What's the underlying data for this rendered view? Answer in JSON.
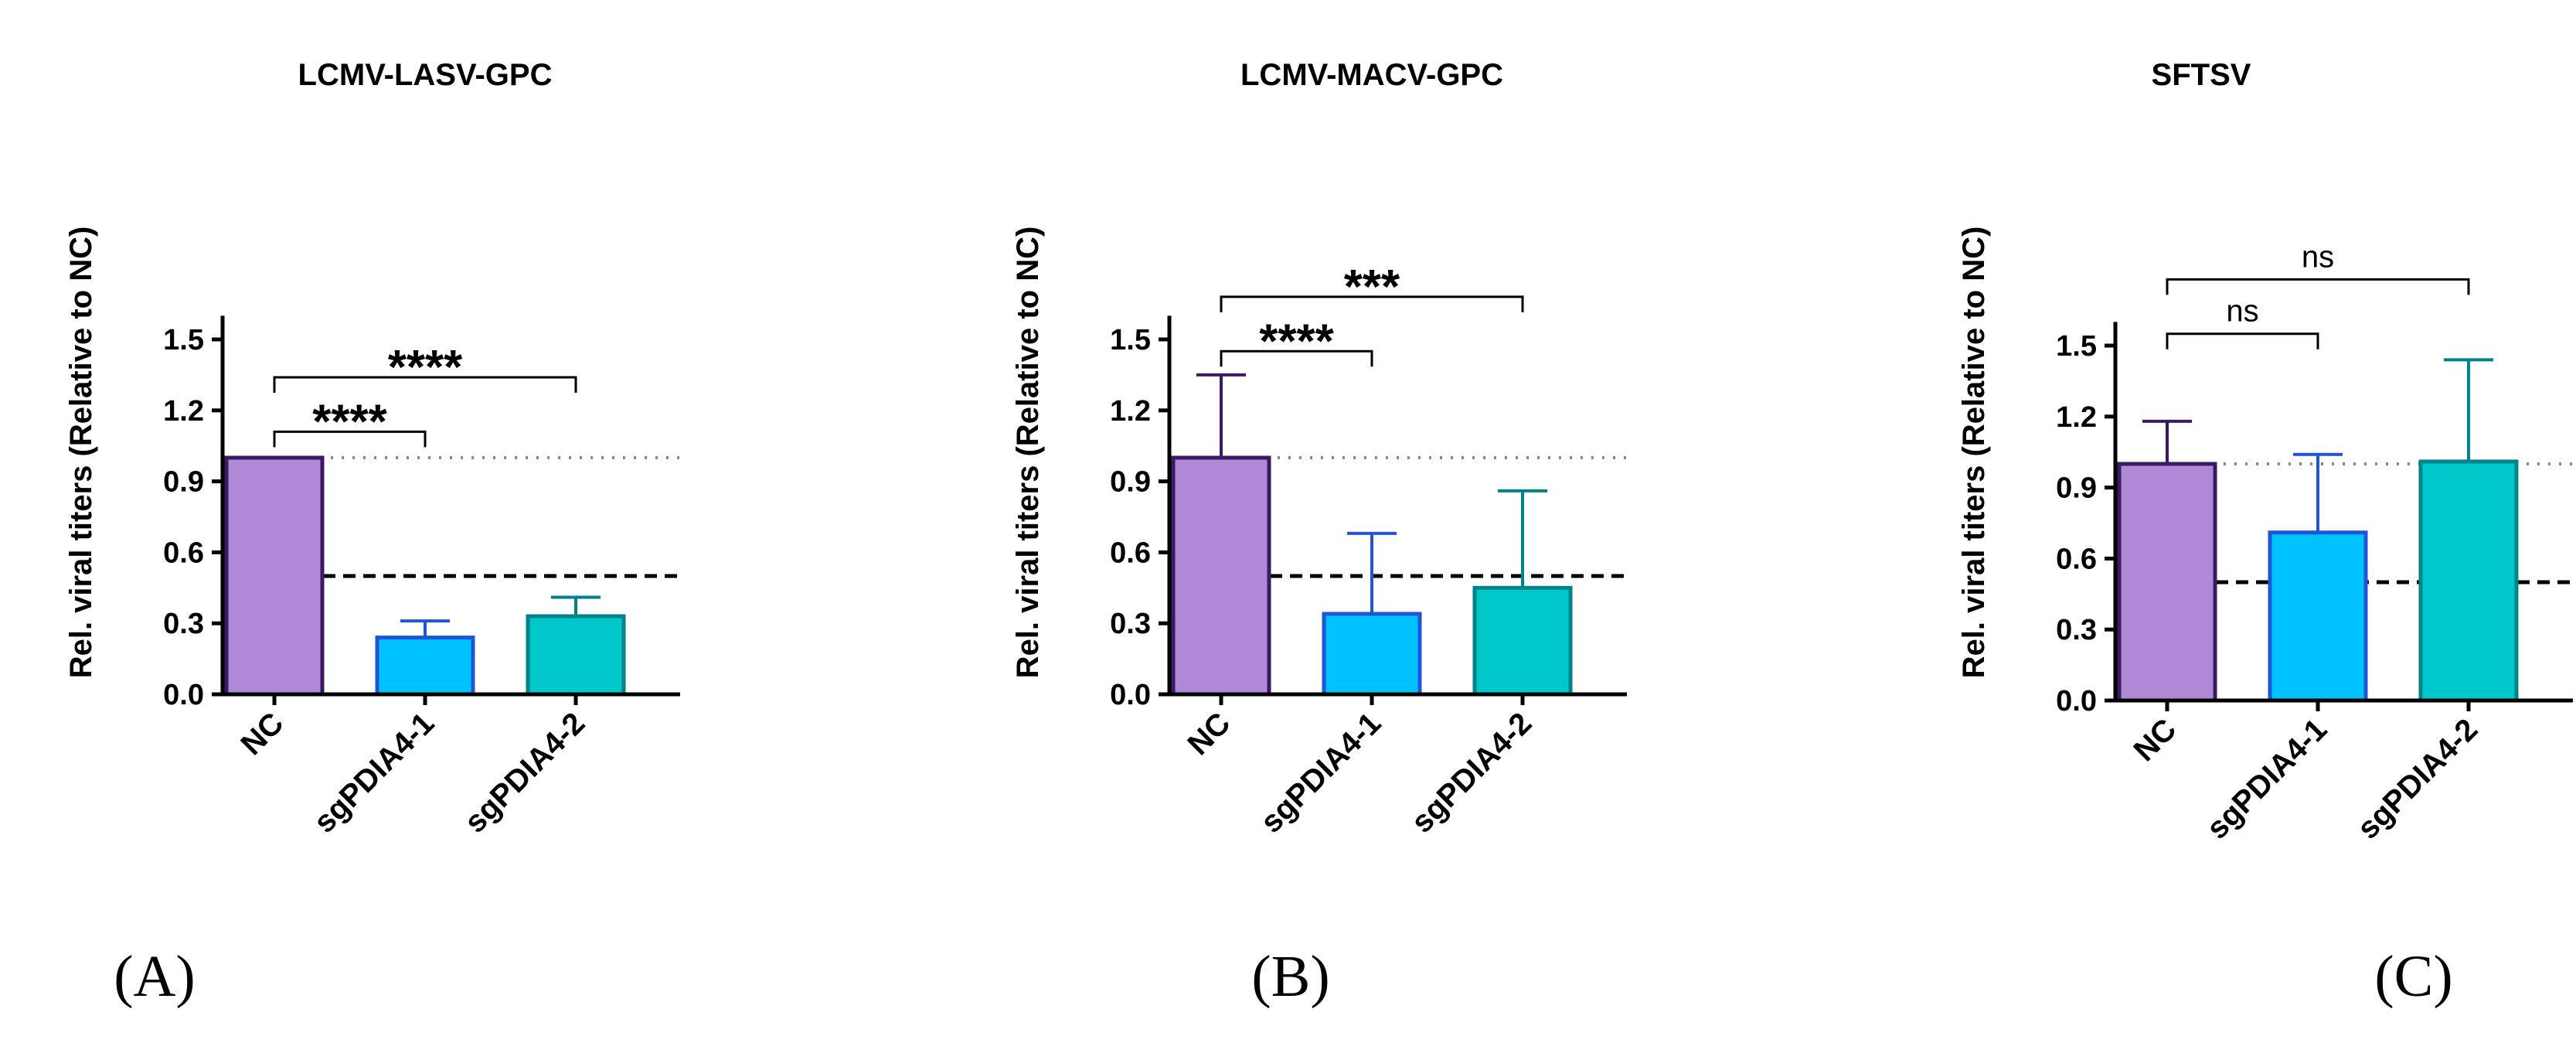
{
  "chart_data": [
    {
      "type": "bar",
      "panel_label": "(A)",
      "title": "LCMV-LASV-GPC",
      "ylabel": "Rel. viral titers (Relative to NC)",
      "xlabel": "",
      "ylim": [
        0,
        1.6
      ],
      "yticks": [
        "0.0",
        "0.3",
        "0.6",
        "0.9",
        "1.2",
        "1.5"
      ],
      "categories": [
        "NC",
        "sgPDIA4-1",
        "sgPDIA4-2"
      ],
      "values": [
        1.0,
        0.24,
        0.33
      ],
      "error_upper": [
        1.0,
        0.31,
        0.41
      ],
      "bar_fill": [
        "#ad89d6",
        "#00c2ff",
        "#00c7c9"
      ],
      "bar_edge": [
        "#3a1b62",
        "#1f55d6",
        "#00828a"
      ],
      "reference_lines": [
        {
          "value": 1.0,
          "style": "dotted"
        },
        {
          "value": 0.5,
          "style": "dashed"
        }
      ],
      "significance": [
        {
          "from": 0,
          "to": 1,
          "label": "****",
          "level": 1.11
        },
        {
          "from": 0,
          "to": 2,
          "label": "****",
          "level": 1.34
        }
      ]
    },
    {
      "type": "bar",
      "panel_label": "(B)",
      "title": "LCMV-MACV-GPC",
      "ylabel": "Rel. viral titers (Relative to NC)",
      "xlabel": "",
      "ylim": [
        0,
        1.6
      ],
      "yticks": [
        "0.0",
        "0.3",
        "0.6",
        "0.9",
        "1.2",
        "1.5"
      ],
      "categories": [
        "NC",
        "sgPDIA4-1",
        "sgPDIA4-2"
      ],
      "values": [
        1.0,
        0.34,
        0.45
      ],
      "error_upper": [
        1.35,
        0.68,
        0.86
      ],
      "bar_fill": [
        "#ad89d6",
        "#00c2ff",
        "#00c7c9"
      ],
      "bar_edge": [
        "#3a1b62",
        "#1f55d6",
        "#00828a"
      ],
      "reference_lines": [
        {
          "value": 1.0,
          "style": "dotted"
        },
        {
          "value": 0.5,
          "style": "dashed"
        }
      ],
      "significance": [
        {
          "from": 0,
          "to": 1,
          "label": "****",
          "level": 1.45
        },
        {
          "from": 0,
          "to": 2,
          "label": "***",
          "level": 1.68
        }
      ]
    },
    {
      "type": "bar",
      "panel_label": "(C)",
      "title": "SFTSV",
      "ylabel": "Rel. viral titers (Relative to NC)",
      "xlabel": "",
      "ylim": [
        0,
        1.6
      ],
      "yticks": [
        "0.0",
        "0.3",
        "0.6",
        "0.9",
        "1.2",
        "1.5"
      ],
      "categories": [
        "NC",
        "sgPDIA4-1",
        "sgPDIA4-2"
      ],
      "values": [
        1.0,
        0.71,
        1.01
      ],
      "error_upper": [
        1.18,
        1.04,
        1.44
      ],
      "bar_fill": [
        "#ad89d6",
        "#00c2ff",
        "#00c7c9"
      ],
      "bar_edge": [
        "#3a1b62",
        "#1f55d6",
        "#00828a"
      ],
      "reference_lines": [
        {
          "value": 1.0,
          "style": "dotted"
        },
        {
          "value": 0.5,
          "style": "dashed"
        }
      ],
      "significance": [
        {
          "from": 0,
          "to": 1,
          "label": "ns",
          "level": 1.55
        },
        {
          "from": 0,
          "to": 2,
          "label": "ns",
          "level": 1.78
        }
      ]
    }
  ]
}
